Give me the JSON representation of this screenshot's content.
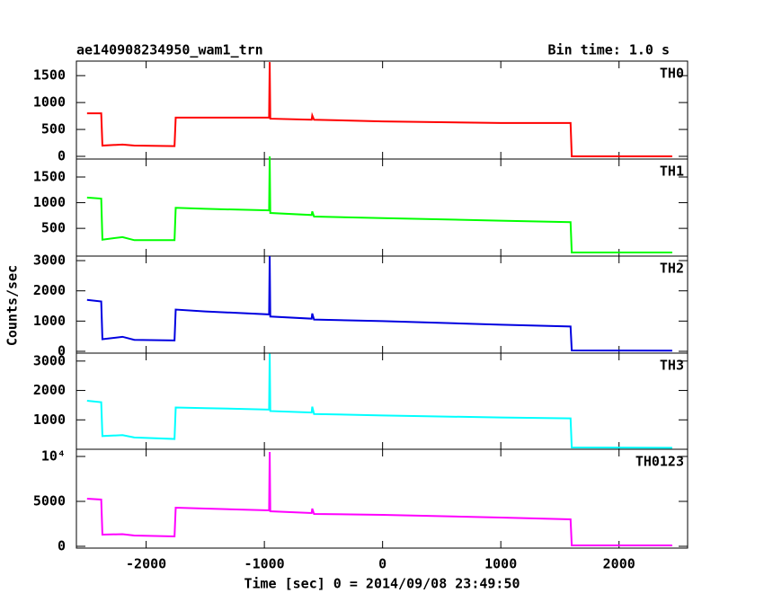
{
  "title": "ae140908234950_wam1_trn",
  "subtitle": "Bin time: 1.0 s",
  "ylabel": "Counts/sec",
  "xlabel": "Time [sec] 0 = 2014/09/08 23:49:50",
  "chart_data": [
    {
      "type": "line",
      "x": [
        -2500,
        -2380,
        -2370,
        -2200,
        -2100,
        -1760,
        -1750,
        -1500,
        -960,
        -955,
        -950,
        -600,
        -595,
        -580,
        0,
        1000,
        1590,
        1600,
        2450
      ],
      "series": [
        {
          "name": "TH0",
          "color": "#ff0000",
          "values": [
            800,
            800,
            200,
            220,
            200,
            190,
            720,
            720,
            720,
            1750,
            700,
            680,
            760,
            680,
            650,
            620,
            620,
            0,
            0
          ]
        }
      ],
      "xlim": [
        -2590,
        2580
      ],
      "ylim": [
        -50,
        1770
      ],
      "yticks": [
        0,
        500,
        1000,
        1500
      ]
    },
    {
      "type": "line",
      "x": [
        -2500,
        -2380,
        -2370,
        -2200,
        -2100,
        -1760,
        -1750,
        -1500,
        -960,
        -955,
        -950,
        -600,
        -595,
        -580,
        0,
        1000,
        1590,
        1600,
        2450
      ],
      "series": [
        {
          "name": "TH1",
          "color": "#00ff00",
          "values": [
            1100,
            1080,
            280,
            330,
            270,
            270,
            900,
            880,
            850,
            1900,
            800,
            760,
            830,
            730,
            700,
            650,
            620,
            30,
            30
          ]
        }
      ],
      "xlim": [
        -2590,
        2580
      ],
      "ylim": [
        -40,
        1850
      ],
      "yticks": [
        500,
        1000,
        1500
      ]
    },
    {
      "type": "line",
      "x": [
        -2500,
        -2380,
        -2370,
        -2200,
        -2100,
        -1760,
        -1750,
        -1500,
        -960,
        -955,
        -950,
        -600,
        -595,
        -580,
        0,
        1000,
        1590,
        1600,
        2450
      ],
      "series": [
        {
          "name": "TH2",
          "color": "#0000e0",
          "values": [
            1700,
            1650,
            400,
            480,
            380,
            360,
            1380,
            1320,
            1220,
            3150,
            1150,
            1080,
            1250,
            1050,
            1000,
            880,
            820,
            30,
            20
          ]
        }
      ],
      "xlim": [
        -2590,
        2580
      ],
      "ylim": [
        -60,
        3150
      ],
      "yticks": [
        0,
        1000,
        2000,
        3000
      ]
    },
    {
      "type": "line",
      "x": [
        -2500,
        -2380,
        -2370,
        -2200,
        -2100,
        -1760,
        -1750,
        -1500,
        -960,
        -955,
        -950,
        -600,
        -595,
        -580,
        0,
        1000,
        1590,
        1600,
        2450
      ],
      "series": [
        {
          "name": "TH3",
          "color": "#00ffff",
          "values": [
            1650,
            1600,
            450,
            480,
            400,
            350,
            1420,
            1400,
            1350,
            3250,
            1300,
            1250,
            1450,
            1200,
            1150,
            1080,
            1050,
            60,
            50
          ]
        }
      ],
      "xlim": [
        -2590,
        2580
      ],
      "ylim": [
        0,
        3270
      ],
      "yticks": [
        1000,
        2000,
        3000
      ]
    },
    {
      "type": "line",
      "x": [
        -2500,
        -2380,
        -2370,
        -2200,
        -2100,
        -1760,
        -1750,
        -1500,
        -960,
        -955,
        -950,
        -600,
        -595,
        -580,
        0,
        1000,
        1590,
        1600,
        2450
      ],
      "series": [
        {
          "name": "TH0123",
          "color": "#ff00ff",
          "values": [
            5300,
            5200,
            1300,
            1350,
            1200,
            1100,
            4300,
            4200,
            4000,
            10500,
            3900,
            3700,
            4200,
            3600,
            3500,
            3200,
            3000,
            100,
            100
          ]
        }
      ],
      "xlim": [
        -2590,
        2580
      ],
      "ylim": [
        -200,
        10800
      ],
      "yticks": [
        0,
        5000,
        {
          "value": 10000,
          "label": "10⁴"
        }
      ],
      "xticks": [
        -2000,
        -1000,
        0,
        1000,
        2000
      ]
    }
  ]
}
